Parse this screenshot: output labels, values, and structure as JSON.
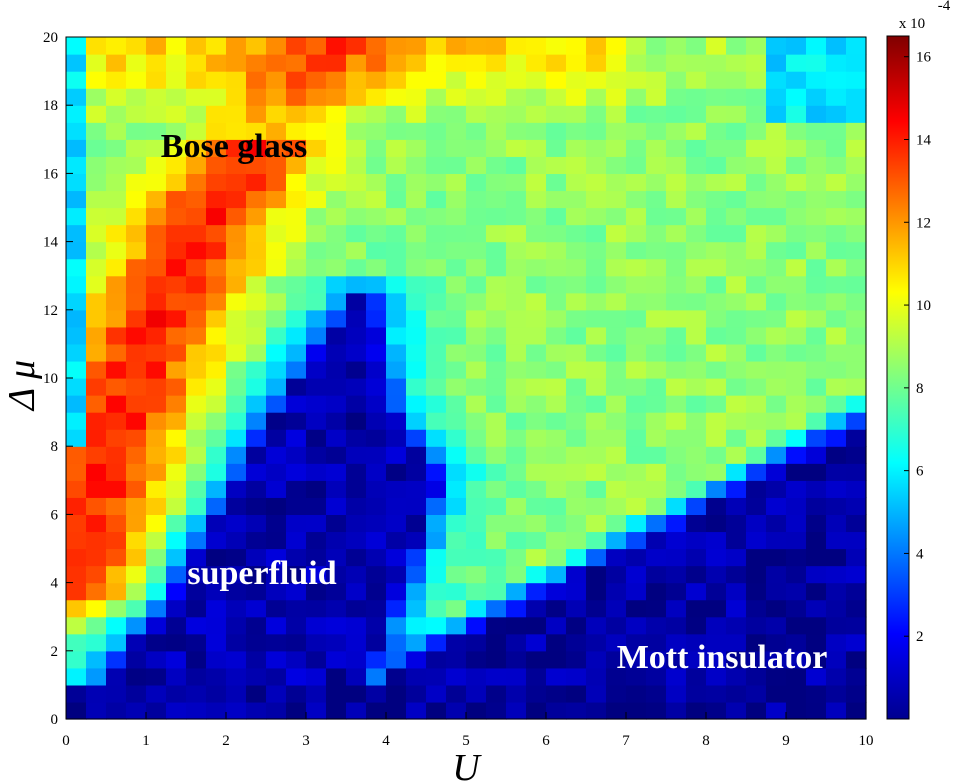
{
  "chart_data": {
    "type": "heatmap",
    "title": "",
    "xlabel": "U",
    "ylabel": "Δ μ",
    "xlim": [
      0,
      10
    ],
    "ylim": [
      0,
      20
    ],
    "x_ticks": [
      "0",
      "1",
      "2",
      "3",
      "4",
      "5",
      "6",
      "7",
      "8",
      "9",
      "10"
    ],
    "y_ticks": [
      "0",
      "2",
      "4",
      "6",
      "8",
      "10",
      "12",
      "14",
      "16",
      "18",
      "20"
    ],
    "colorbar": {
      "range": [
        0,
        16.5
      ],
      "ticks": [
        "2",
        "4",
        "6",
        "8",
        "10",
        "12",
        "14",
        "16"
      ],
      "multiplier_label": "x 10",
      "exponent_label": "-4",
      "colormap": "jet"
    },
    "regions": [
      {
        "label": "Bose glass",
        "color": "#000000"
      },
      {
        "label": "superfluid",
        "color": "#ffffff"
      },
      {
        "label": "Mott insulator",
        "color": "#ffffff"
      }
    ],
    "annotations": [
      {
        "text": "Bose glass",
        "x": 3.1,
        "y": 16.3
      },
      {
        "text": "superfluid",
        "x": 2.4,
        "y": 4.0
      },
      {
        "text": "Mott insulator",
        "x": 8.6,
        "y": 1.7
      }
    ],
    "grid": false
  }
}
